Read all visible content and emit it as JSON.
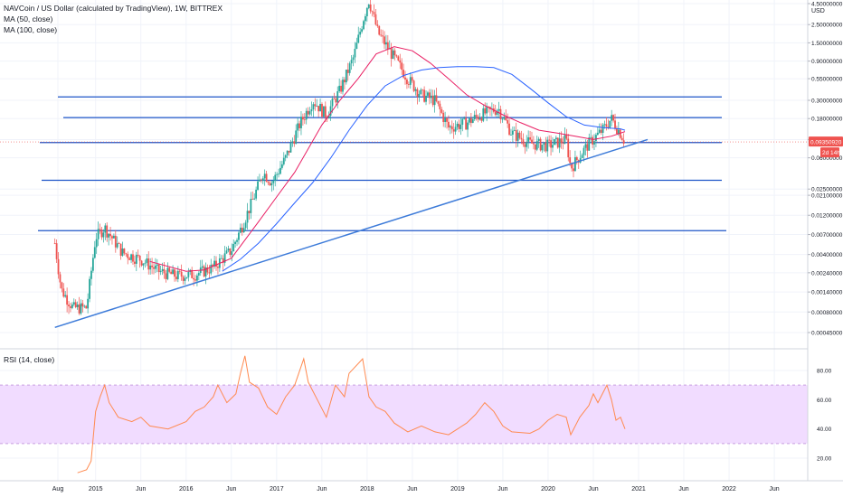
{
  "header": {
    "symbol_line": "NAVCoin / US Dollar (calculated by TradingView), 1W, BITTREX",
    "ma50_label": "MA (50, close)",
    "ma100_label": "MA (100, close)",
    "rsi_label": "RSI (14, close)",
    "currency": "USD"
  },
  "badges": {
    "price": "0.09350920",
    "countdown": "2d 14h"
  },
  "colors": {
    "background": "#ffffff",
    "grid": "#f0f3fa",
    "candle_up": "#26a69a",
    "candle_down": "#ef5350",
    "ma50": "#e91e63",
    "ma100": "#2962ff",
    "hline": "#1e55c8",
    "trendline": "#3d7bd9",
    "rsi_line": "#ff8a50",
    "rsi_band": "#f1dcff",
    "rsi_band_border": "#c89ee0",
    "price_badge": "#ef5350",
    "countdown_badge": "#ef5350",
    "axis_text": "#131722"
  },
  "chart_data": [
    {
      "type": "candlestick",
      "title": "NAVCoin / US Dollar (calculated by TradingView), 1W, BITTREX",
      "y_scale": "log",
      "y_unit": "USD",
      "y_ticks": [
        4.5,
        2.5,
        1.5,
        0.9,
        0.55,
        0.3,
        0.18,
        0.1,
        0.06,
        0.025,
        0.021,
        0.012,
        0.007,
        0.004,
        0.0024,
        0.0014,
        0.0008,
        0.00045
      ],
      "y_tick_labels": [
        "4.50000000",
        "2.50000000",
        "1.50000000",
        "0.90000000",
        "0.55000000",
        "0.30000000",
        "0.18000000",
        "0.10000000",
        "0.06000000",
        "0.02500000",
        "0.02100000",
        "0.01200000",
        "0.00700000",
        "0.00400000",
        "0.00240000",
        "0.00140000",
        "0.00080000",
        "0.00045000"
      ],
      "x_ticks": [
        2014.583,
        2015.0,
        2015.5,
        2016.0,
        2016.5,
        2017.0,
        2017.5,
        2018.0,
        2018.5,
        2019.0,
        2019.5,
        2020.0,
        2020.5,
        2021.0,
        2021.5,
        2022.0,
        2022.5
      ],
      "x_tick_labels": [
        "Aug",
        "2015",
        "Jun",
        "2016",
        "Jun",
        "2017",
        "Jun",
        "2018",
        "Jun",
        "2019",
        "Jun",
        "2020",
        "Jun",
        "2021",
        "Jun",
        "2022",
        "Jun"
      ],
      "close_keypoints": [
        [
          2014.55,
          0.0055
        ],
        [
          2014.62,
          0.0015
        ],
        [
          2014.75,
          0.0009
        ],
        [
          2014.9,
          0.0009
        ],
        [
          2015.0,
          0.0065
        ],
        [
          2015.1,
          0.0085
        ],
        [
          2015.3,
          0.0042
        ],
        [
          2015.5,
          0.0035
        ],
        [
          2015.7,
          0.0025
        ],
        [
          2015.9,
          0.0022
        ],
        [
          2016.1,
          0.0023
        ],
        [
          2016.3,
          0.0028
        ],
        [
          2016.5,
          0.0045
        ],
        [
          2016.6,
          0.008
        ],
        [
          2016.75,
          0.02
        ],
        [
          2016.85,
          0.04
        ],
        [
          2016.95,
          0.03
        ],
        [
          2017.1,
          0.06
        ],
        [
          2017.25,
          0.15
        ],
        [
          2017.4,
          0.3
        ],
        [
          2017.55,
          0.2
        ],
        [
          2017.7,
          0.4
        ],
        [
          2017.85,
          1.0
        ],
        [
          2017.96,
          3.0
        ],
        [
          2018.02,
          5.0
        ],
        [
          2018.12,
          2.0
        ],
        [
          2018.25,
          1.2
        ],
        [
          2018.45,
          0.55
        ],
        [
          2018.6,
          0.35
        ],
        [
          2018.75,
          0.3
        ],
        [
          2018.9,
          0.14
        ],
        [
          2019.1,
          0.16
        ],
        [
          2019.25,
          0.2
        ],
        [
          2019.45,
          0.24
        ],
        [
          2019.6,
          0.12
        ],
        [
          2019.8,
          0.09
        ],
        [
          2020.0,
          0.085
        ],
        [
          2020.2,
          0.1
        ],
        [
          2020.25,
          0.045
        ],
        [
          2020.45,
          0.09
        ],
        [
          2020.6,
          0.13
        ],
        [
          2020.7,
          0.18
        ],
        [
          2020.8,
          0.12
        ],
        [
          2020.85,
          0.0935
        ]
      ],
      "ma50_keypoints": [
        [
          2015.6,
          0.0033
        ],
        [
          2016.0,
          0.0025
        ],
        [
          2016.2,
          0.0026
        ],
        [
          2016.5,
          0.0036
        ],
        [
          2016.8,
          0.01
        ],
        [
          2017.0,
          0.02
        ],
        [
          2017.2,
          0.04
        ],
        [
          2017.5,
          0.15
        ],
        [
          2017.7,
          0.3
        ],
        [
          2017.9,
          0.55
        ],
        [
          2018.1,
          1.1
        ],
        [
          2018.3,
          1.35
        ],
        [
          2018.5,
          1.2
        ],
        [
          2018.7,
          0.85
        ],
        [
          2018.9,
          0.55
        ],
        [
          2019.1,
          0.35
        ],
        [
          2019.3,
          0.26
        ],
        [
          2019.5,
          0.2
        ],
        [
          2019.7,
          0.16
        ],
        [
          2019.9,
          0.13
        ],
        [
          2020.1,
          0.12
        ],
        [
          2020.3,
          0.11
        ],
        [
          2020.5,
          0.1
        ],
        [
          2020.7,
          0.11
        ],
        [
          2020.85,
          0.125
        ]
      ],
      "ma100_keypoints": [
        [
          2016.4,
          0.0025
        ],
        [
          2016.6,
          0.0035
        ],
        [
          2016.8,
          0.0055
        ],
        [
          2017.0,
          0.0095
        ],
        [
          2017.2,
          0.017
        ],
        [
          2017.4,
          0.03
        ],
        [
          2017.6,
          0.06
        ],
        [
          2017.8,
          0.13
        ],
        [
          2018.0,
          0.26
        ],
        [
          2018.2,
          0.45
        ],
        [
          2018.4,
          0.6
        ],
        [
          2018.6,
          0.7
        ],
        [
          2018.8,
          0.75
        ],
        [
          2019.0,
          0.77
        ],
        [
          2019.2,
          0.77
        ],
        [
          2019.4,
          0.75
        ],
        [
          2019.6,
          0.62
        ],
        [
          2019.8,
          0.42
        ],
        [
          2020.0,
          0.28
        ],
        [
          2020.2,
          0.19
        ],
        [
          2020.4,
          0.15
        ],
        [
          2020.6,
          0.14
        ],
        [
          2020.8,
          0.135
        ],
        [
          2020.85,
          0.13
        ]
      ],
      "horizontal_levels": [
        0.33,
        0.185,
        0.092,
        0.032,
        0.0078
      ],
      "trendline": [
        [
          2014.55,
          0.00052
        ],
        [
          2021.1,
          0.1
        ]
      ],
      "last_price": 0.0935092
    },
    {
      "type": "line",
      "title": "RSI (14, close)",
      "y_ticks": [
        80,
        60,
        40,
        20
      ],
      "y_tick_labels": [
        "80.00",
        "60.00",
        "40.00",
        "20.00"
      ],
      "band": [
        30,
        70
      ],
      "ylim": [
        5,
        95
      ],
      "series": [
        {
          "name": "RSI (14, close)",
          "points": [
            [
              2014.8,
              10
            ],
            [
              2014.9,
              12
            ],
            [
              2014.95,
              18
            ],
            [
              2015.0,
              52
            ],
            [
              2015.05,
              62
            ],
            [
              2015.1,
              70
            ],
            [
              2015.15,
              58
            ],
            [
              2015.25,
              48
            ],
            [
              2015.4,
              45
            ],
            [
              2015.5,
              48
            ],
            [
              2015.6,
              42
            ],
            [
              2015.8,
              40
            ],
            [
              2016.0,
              45
            ],
            [
              2016.1,
              52
            ],
            [
              2016.2,
              55
            ],
            [
              2016.3,
              62
            ],
            [
              2016.35,
              70
            ],
            [
              2016.45,
              58
            ],
            [
              2016.55,
              64
            ],
            [
              2016.6,
              78
            ],
            [
              2016.65,
              90
            ],
            [
              2016.7,
              72
            ],
            [
              2016.8,
              68
            ],
            [
              2016.9,
              55
            ],
            [
              2017.0,
              50
            ],
            [
              2017.1,
              62
            ],
            [
              2017.2,
              70
            ],
            [
              2017.3,
              88
            ],
            [
              2017.35,
              72
            ],
            [
              2017.45,
              60
            ],
            [
              2017.55,
              48
            ],
            [
              2017.65,
              70
            ],
            [
              2017.75,
              62
            ],
            [
              2017.8,
              78
            ],
            [
              2017.95,
              88
            ],
            [
              2018.02,
              62
            ],
            [
              2018.1,
              55
            ],
            [
              2018.2,
              52
            ],
            [
              2018.3,
              44
            ],
            [
              2018.45,
              38
            ],
            [
              2018.6,
              42
            ],
            [
              2018.75,
              38
            ],
            [
              2018.9,
              36
            ],
            [
              2019.0,
              40
            ],
            [
              2019.1,
              44
            ],
            [
              2019.2,
              50
            ],
            [
              2019.3,
              58
            ],
            [
              2019.4,
              52
            ],
            [
              2019.5,
              42
            ],
            [
              2019.6,
              38
            ],
            [
              2019.8,
              37
            ],
            [
              2019.9,
              40
            ],
            [
              2020.0,
              46
            ],
            [
              2020.1,
              50
            ],
            [
              2020.2,
              48
            ],
            [
              2020.25,
              36
            ],
            [
              2020.35,
              48
            ],
            [
              2020.45,
              56
            ],
            [
              2020.5,
              64
            ],
            [
              2020.55,
              58
            ],
            [
              2020.65,
              70
            ],
            [
              2020.7,
              60
            ],
            [
              2020.75,
              46
            ],
            [
              2020.8,
              48
            ],
            [
              2020.85,
              40
            ]
          ]
        }
      ]
    }
  ]
}
